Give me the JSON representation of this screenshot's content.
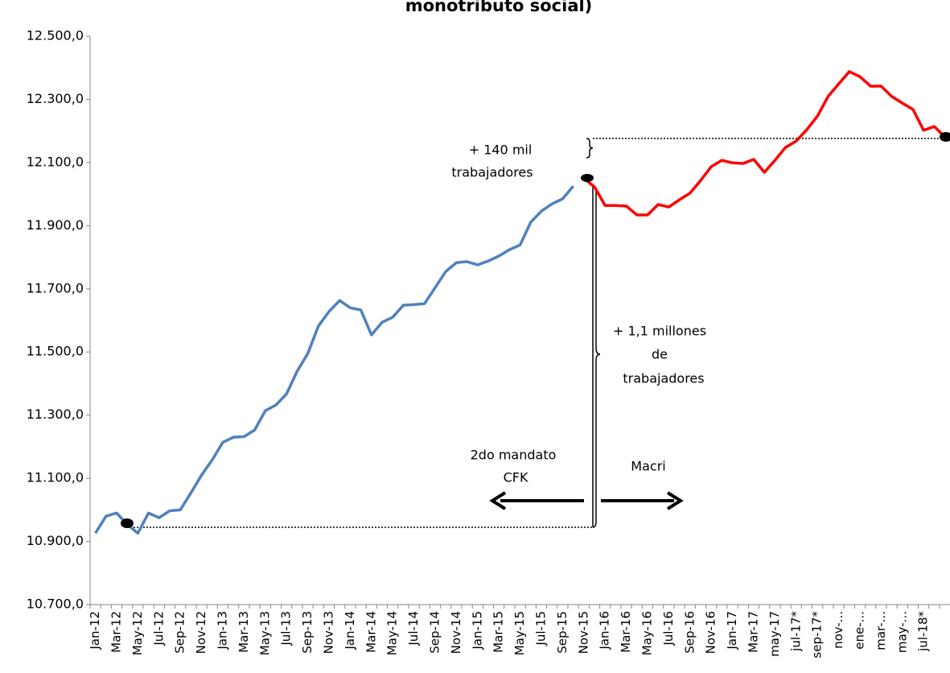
{
  "chart_data": {
    "type": "line",
    "title": "monotributo social)",
    "categories": [
      "Jan-12",
      null,
      "Mar-12",
      null,
      "May-12",
      null,
      "Jul-12",
      null,
      "Sep-12",
      null,
      "Nov-12",
      null,
      "Jan-13",
      null,
      "Mar-13",
      null,
      "May-13",
      null,
      "Jul-13",
      null,
      "Sep-13",
      null,
      "Nov-13",
      null,
      "Jan-14",
      null,
      "Mar-14",
      null,
      "May-14",
      null,
      "Jul-14",
      null,
      "Sep-14",
      null,
      "Nov-14",
      null,
      "Jan-15",
      null,
      "Mar-15",
      null,
      "May-15",
      null,
      "Jul-15",
      null,
      "Sep-15",
      null,
      "Nov-15",
      null,
      "Jan-16",
      null,
      "Mar-16",
      null,
      "May-16",
      null,
      "Jul-16",
      null,
      "Sep-16",
      null,
      "Nov-16",
      null,
      "Jan-17",
      null,
      "Mar-17",
      null,
      "may-17",
      null,
      "jul-17*",
      null,
      "sep-17*",
      null,
      "nov-...",
      null,
      "ene-...",
      null,
      "mar-...",
      null,
      "may-...",
      null,
      "jul-18*",
      null,
      null
    ],
    "series": [
      {
        "color": "#4f81bd",
        "values": [
          10926,
          10980,
          10990,
          10954,
          10926,
          10990,
          10975,
          10997,
          11000,
          11054,
          11110,
          11158,
          11214,
          11230,
          11232,
          11253,
          11314,
          11332,
          11367,
          11439,
          11495,
          11582,
          11628,
          11663,
          11640,
          11633,
          11554,
          11594,
          11610,
          11648,
          11650,
          11653,
          11704,
          11755,
          11783,
          11786,
          11776,
          11788,
          11804,
          11824,
          11839,
          11911,
          11946,
          11969,
          11985,
          12025,
          null,
          null,
          null,
          null,
          null,
          null,
          null,
          null,
          null,
          null,
          null,
          null,
          null,
          null,
          null,
          null,
          null,
          null,
          null,
          null,
          null,
          null,
          null,
          null,
          null,
          null,
          null,
          null,
          null,
          null,
          null,
          null,
          null,
          null,
          null
        ]
      },
      {
        "color": "#ff0000",
        "values": [
          null,
          null,
          null,
          null,
          null,
          null,
          null,
          null,
          null,
          null,
          null,
          null,
          null,
          null,
          null,
          null,
          null,
          null,
          null,
          null,
          null,
          null,
          null,
          null,
          null,
          null,
          null,
          null,
          null,
          null,
          null,
          null,
          null,
          null,
          null,
          null,
          null,
          null,
          null,
          null,
          null,
          null,
          null,
          null,
          null,
          null,
          12050,
          12023,
          11964,
          11964,
          11962,
          11934,
          11934,
          11967,
          11959,
          11982,
          12003,
          12043,
          12087,
          12107,
          12099,
          12097,
          12110,
          12069,
          12107,
          12148,
          12168,
          12204,
          12247,
          12309,
          12349,
          12388,
          12372,
          12342,
          12342,
          12309,
          12288,
          12268,
          12202,
          12214,
          12181
        ]
      }
    ],
    "ylim": [
      10700,
      12500
    ],
    "yticks": [
      {
        "value": 10700,
        "label": "10.700,0"
      },
      {
        "value": 10900,
        "label": "10.900,0"
      },
      {
        "value": 11100,
        "label": "11.100,0"
      },
      {
        "value": 11300,
        "label": "11.300,0"
      },
      {
        "value": 11500,
        "label": "11.500,0"
      },
      {
        "value": 11700,
        "label": "11.700,0"
      },
      {
        "value": 11900,
        "label": "11.900,0"
      },
      {
        "value": 12100,
        "label": "12.100,0"
      },
      {
        "value": 12300,
        "label": "12.300,0"
      },
      {
        "value": 12500,
        "label": "12.500,0"
      }
    ],
    "grid": false,
    "annotations": [
      "+ 140 mil",
      "trabajadores",
      "+ 1,1 millones",
      "de",
      "trabajadores",
      "2do mandato",
      "CFK",
      "Macri"
    ]
  }
}
